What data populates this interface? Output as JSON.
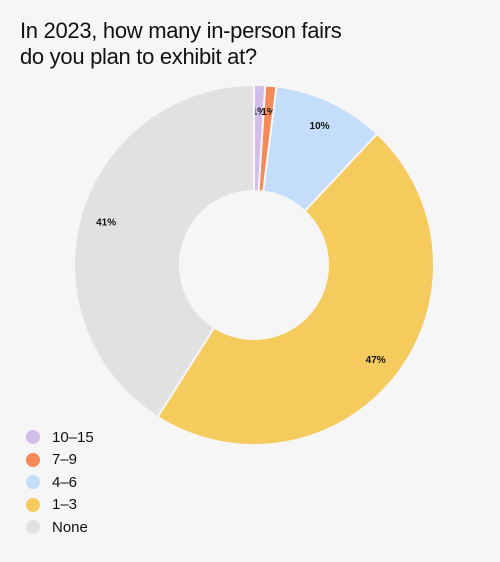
{
  "title_lines": [
    "In 2023, how many in-person fairs",
    "do you plan to exhibit at?"
  ],
  "chart_data": {
    "type": "pie",
    "variant": "donut",
    "title": "In 2023, how many in-person fairs do you plan to exhibit at?",
    "categories": [
      "10–15",
      "7–9",
      "4–6",
      "1–3",
      "None"
    ],
    "values": [
      1,
      1,
      10,
      47,
      41
    ],
    "labels": [
      "1%",
      "1%",
      "10%",
      "47%",
      "41%"
    ],
    "colors": [
      "#d3bde9",
      "#f4895a",
      "#c3ddfb",
      "#f6cb5e",
      "#e1e1e1"
    ],
    "legend_position": "bottom-left"
  }
}
